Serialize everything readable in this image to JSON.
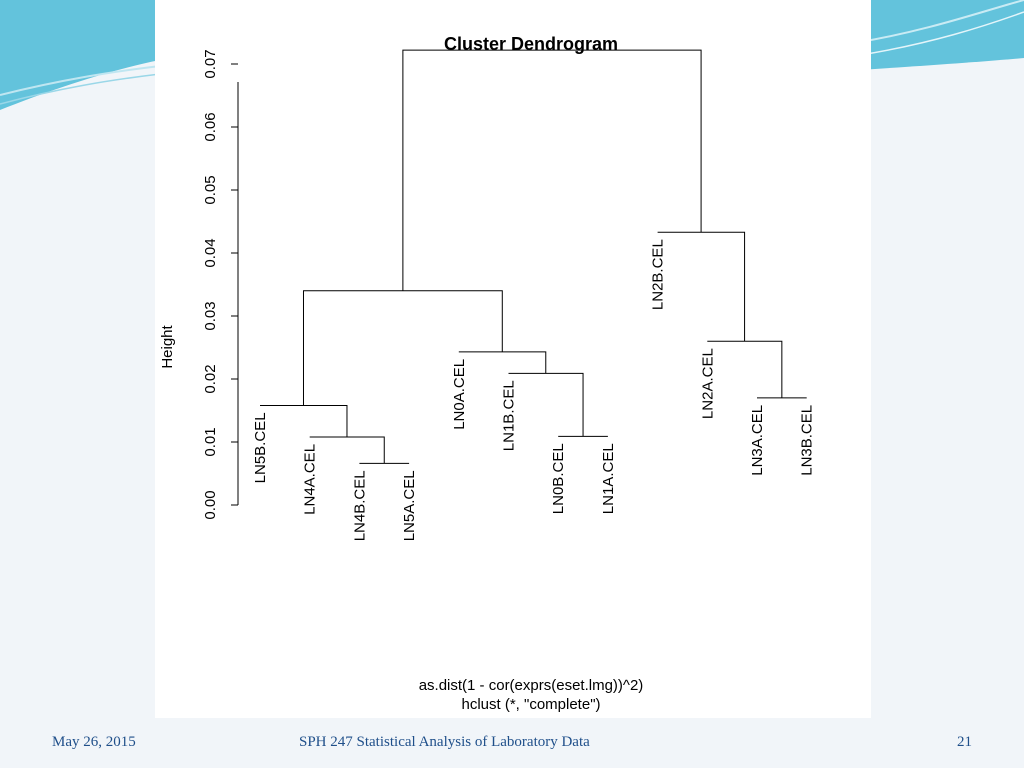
{
  "footer": {
    "date": "May 26, 2015",
    "course": "SPH 247 Statistical Analysis of Laboratory Data",
    "page_number": "21"
  },
  "colors": {
    "slide_background": "#f1f5f9",
    "accent_teal": "#4fb3cf",
    "footer_text": "#1f4f8a"
  },
  "chart_data": {
    "type": "dendrogram",
    "title": "Cluster Dendrogram",
    "ylabel": "Height",
    "xlabel_lines": [
      "as.dist(1 - cor(exprs(eset.lmg))^2)",
      "hclust (*, \"complete\")"
    ],
    "ylim": [
      0,
      0.07
    ],
    "y_ticks": [
      "0.00",
      "0.01",
      "0.02",
      "0.03",
      "0.04",
      "0.05",
      "0.06",
      "0.07"
    ],
    "leaves": [
      {
        "label": "LN5B.CEL",
        "height": 0.0158
      },
      {
        "label": "LN4A.CEL",
        "height": 0.0108
      },
      {
        "label": "LN4B.CEL",
        "height": 0.0066
      },
      {
        "label": "LN5A.CEL",
        "height": 0.0066
      },
      {
        "label": "LN0A.CEL",
        "height": 0.0243
      },
      {
        "label": "LN1B.CEL",
        "height": 0.0209
      },
      {
        "label": "LN0B.CEL",
        "height": 0.0109
      },
      {
        "label": "LN1A.CEL",
        "height": 0.0109
      },
      {
        "label": "LN2B.CEL",
        "height": 0.0433
      },
      {
        "label": "LN2A.CEL",
        "height": 0.026
      },
      {
        "label": "LN3A.CEL",
        "height": 0.017
      },
      {
        "label": "LN3B.CEL",
        "height": 0.017
      }
    ],
    "merges": [
      {
        "left": "leaf:2",
        "right": "leaf:3",
        "height": 0.0066
      },
      {
        "left": "leaf:1",
        "right": "node:0",
        "height": 0.0108
      },
      {
        "left": "leaf:0",
        "right": "node:1",
        "height": 0.0158
      },
      {
        "left": "leaf:6",
        "right": "leaf:7",
        "height": 0.0109
      },
      {
        "left": "leaf:5",
        "right": "node:3",
        "height": 0.0209
      },
      {
        "left": "leaf:4",
        "right": "node:4",
        "height": 0.0243
      },
      {
        "left": "node:2",
        "right": "node:5",
        "height": 0.034
      },
      {
        "left": "leaf:10",
        "right": "leaf:11",
        "height": 0.017
      },
      {
        "left": "leaf:9",
        "right": "node:7",
        "height": 0.026
      },
      {
        "left": "leaf:8",
        "right": "node:8",
        "height": 0.0433
      },
      {
        "left": "node:6",
        "right": "node:9",
        "height": 0.0722
      }
    ]
  }
}
